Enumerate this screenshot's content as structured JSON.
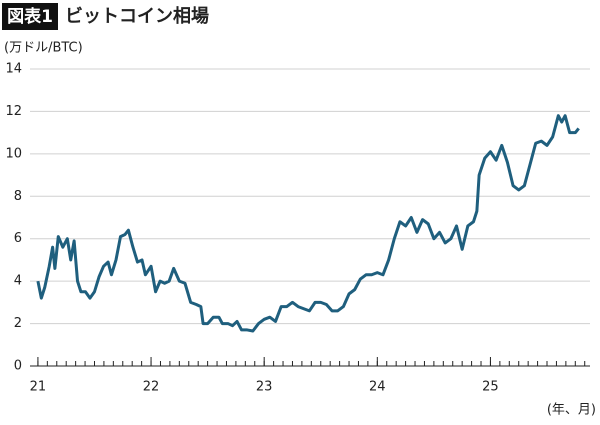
{
  "chart_data": {
    "type": "line",
    "figure_label": "図表1",
    "title": "ビットコイン相場",
    "y_label": "(万ドル/BTC)",
    "x_label": "(年、月)",
    "x": [
      21.0,
      21.03,
      21.06,
      21.1,
      21.13,
      21.15,
      21.18,
      21.22,
      21.26,
      21.29,
      21.32,
      21.35,
      21.38,
      21.42,
      21.46,
      21.5,
      21.54,
      21.58,
      21.62,
      21.65,
      21.69,
      21.73,
      21.77,
      21.8,
      21.84,
      21.88,
      21.92,
      21.95,
      22.0,
      22.04,
      22.08,
      22.12,
      22.16,
      22.2,
      22.25,
      22.3,
      22.35,
      22.4,
      22.44,
      22.46,
      22.5,
      22.55,
      22.6,
      22.63,
      22.68,
      22.72,
      22.76,
      22.8,
      22.85,
      22.9,
      22.95,
      23.0,
      23.05,
      23.1,
      23.15,
      23.2,
      23.25,
      23.3,
      23.35,
      23.4,
      23.45,
      23.5,
      23.55,
      23.6,
      23.65,
      23.7,
      23.75,
      23.8,
      23.85,
      23.9,
      23.95,
      24.0,
      24.05,
      24.1,
      24.15,
      24.2,
      24.25,
      24.3,
      24.35,
      24.4,
      24.45,
      24.5,
      24.55,
      24.6,
      24.65,
      24.7,
      24.75,
      24.8,
      24.85,
      24.88,
      24.9,
      24.95,
      25.0,
      25.05,
      25.1,
      25.15,
      25.2,
      25.25,
      25.3,
      25.35,
      25.4,
      25.45,
      25.5,
      25.55,
      25.6,
      25.63,
      25.66,
      25.7,
      25.75,
      25.78
    ],
    "series": [
      {
        "name": "ビットコイン",
        "color": "#1f5f7e",
        "values": [
          4.0,
          3.2,
          3.7,
          4.7,
          5.6,
          4.6,
          6.1,
          5.6,
          6.0,
          5.0,
          5.9,
          4.0,
          3.5,
          3.5,
          3.2,
          3.5,
          4.2,
          4.7,
          4.9,
          4.3,
          5.0,
          6.1,
          6.2,
          6.4,
          5.6,
          4.9,
          5.0,
          4.3,
          4.7,
          3.5,
          4.0,
          3.9,
          4.0,
          4.6,
          4.0,
          3.9,
          3.0,
          2.9,
          2.8,
          2.0,
          2.0,
          2.3,
          2.3,
          2.0,
          2.0,
          1.9,
          2.1,
          1.7,
          1.7,
          1.65,
          2.0,
          2.2,
          2.3,
          2.1,
          2.8,
          2.8,
          3.0,
          2.8,
          2.7,
          2.6,
          3.0,
          3.0,
          2.9,
          2.6,
          2.6,
          2.8,
          3.4,
          3.6,
          4.1,
          4.3,
          4.3,
          4.4,
          4.3,
          5.0,
          6.0,
          6.8,
          6.6,
          7.0,
          6.3,
          6.9,
          6.7,
          6.0,
          6.3,
          5.8,
          6.0,
          6.6,
          5.5,
          6.6,
          6.8,
          7.3,
          9.0,
          9.8,
          10.1,
          9.7,
          10.4,
          9.6,
          8.5,
          8.3,
          8.5,
          9.5,
          10.5,
          10.6,
          10.4,
          10.8,
          11.8,
          11.5,
          11.8,
          11.0,
          11.0,
          11.2
        ]
      }
    ],
    "xlim": [
      20.93,
      25.88
    ],
    "xticks": [
      21,
      22,
      23,
      24,
      25
    ],
    "ylim": [
      0,
      14
    ],
    "yticks": [
      0,
      2,
      4,
      6,
      8,
      10,
      12,
      14
    ],
    "grid": true
  }
}
